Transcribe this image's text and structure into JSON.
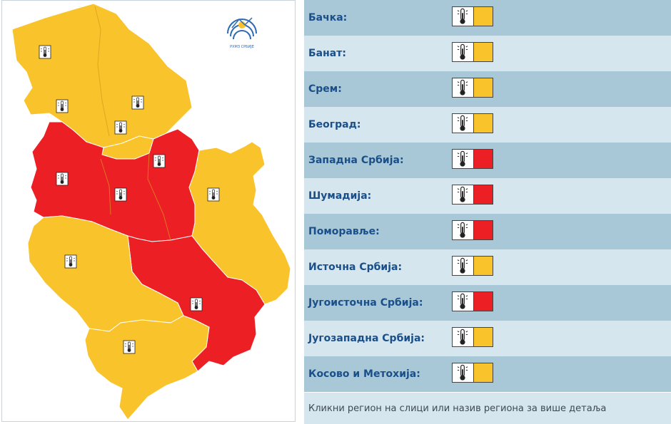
{
  "colors": {
    "yellow": "#f9c32b",
    "red": "#ec1f25",
    "row_dark": "#a8c8d8",
    "row_light": "#d6e6ee"
  },
  "logo": {
    "text": "РХМЗ СРБИЈЕ"
  },
  "map": {
    "regions": [
      {
        "name": "Бачка",
        "level": "yellow"
      },
      {
        "name": "Банат",
        "level": "yellow"
      },
      {
        "name": "Срем",
        "level": "yellow"
      },
      {
        "name": "Београд",
        "level": "yellow"
      },
      {
        "name": "Западна Србија",
        "level": "red"
      },
      {
        "name": "Шумадија",
        "level": "red"
      },
      {
        "name": "Поморавље",
        "level": "red"
      },
      {
        "name": "Источна Србија",
        "level": "yellow"
      },
      {
        "name": "Југоисточна Србија",
        "level": "red"
      },
      {
        "name": "Југозападна Србија",
        "level": "yellow"
      },
      {
        "name": "Косово и Метохија",
        "level": "yellow"
      }
    ],
    "warning_icon": "thermometer-icon"
  },
  "table": {
    "rows": [
      {
        "label": "Бачка:",
        "level": "yellow"
      },
      {
        "label": "Банат:",
        "level": "yellow"
      },
      {
        "label": "Срем:",
        "level": "yellow"
      },
      {
        "label": "Београд:",
        "level": "yellow"
      },
      {
        "label": "Западна Србија:",
        "level": "red"
      },
      {
        "label": "Шумадија:",
        "level": "red"
      },
      {
        "label": "Поморавље:",
        "level": "red"
      },
      {
        "label": "Источна Србија:",
        "level": "yellow"
      },
      {
        "label": "Југоисточна Србија:",
        "level": "red"
      },
      {
        "label": "Југозападна Србија:",
        "level": "yellow"
      },
      {
        "label": "Косово и Метохија:",
        "level": "yellow"
      }
    ],
    "footer": "Кликни регион на слици или назив региона за више детаља"
  }
}
